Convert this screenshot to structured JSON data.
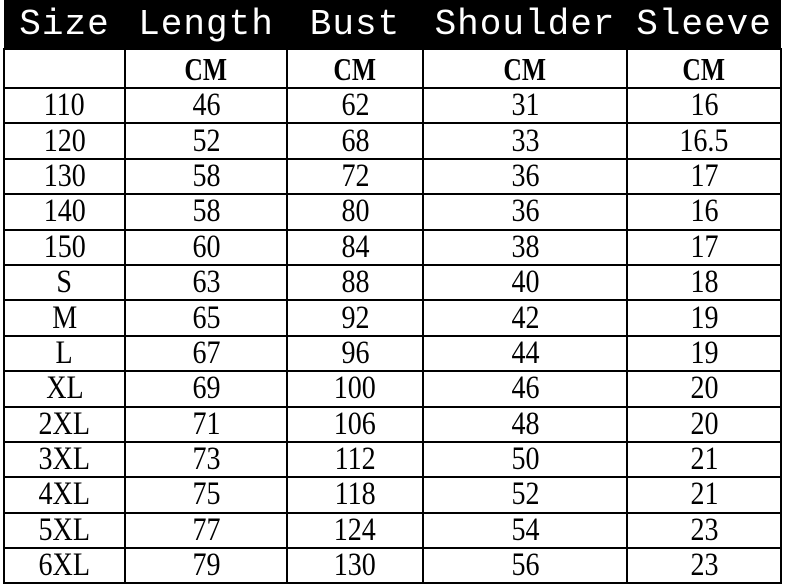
{
  "table": {
    "headers": [
      "Size",
      "Length",
      "Bust",
      "Shoulder",
      "Sleeve"
    ],
    "units": [
      "",
      "CM",
      "CM",
      "CM",
      "CM"
    ],
    "rows": [
      [
        "110",
        "46",
        "62",
        "31",
        "16"
      ],
      [
        "120",
        "52",
        "68",
        "33",
        "16.5"
      ],
      [
        "130",
        "58",
        "72",
        "36",
        "17"
      ],
      [
        "140",
        "58",
        "80",
        "36",
        "16"
      ],
      [
        "150",
        "60",
        "84",
        "38",
        "17"
      ],
      [
        "S",
        "63",
        "88",
        "40",
        "18"
      ],
      [
        "M",
        "65",
        "92",
        "42",
        "19"
      ],
      [
        "L",
        "67",
        "96",
        "44",
        "19"
      ],
      [
        "XL",
        "69",
        "100",
        "46",
        "20"
      ],
      [
        "2XL",
        "71",
        "106",
        "48",
        "20"
      ],
      [
        "3XL",
        "73",
        "112",
        "50",
        "21"
      ],
      [
        "4XL",
        "75",
        "118",
        "52",
        "21"
      ],
      [
        "5XL",
        "77",
        "124",
        "54",
        "23"
      ],
      [
        "6XL",
        "79",
        "130",
        "56",
        "23"
      ]
    ]
  },
  "colors": {
    "header_bg": "#000000",
    "header_text": "#ffffff"
  }
}
